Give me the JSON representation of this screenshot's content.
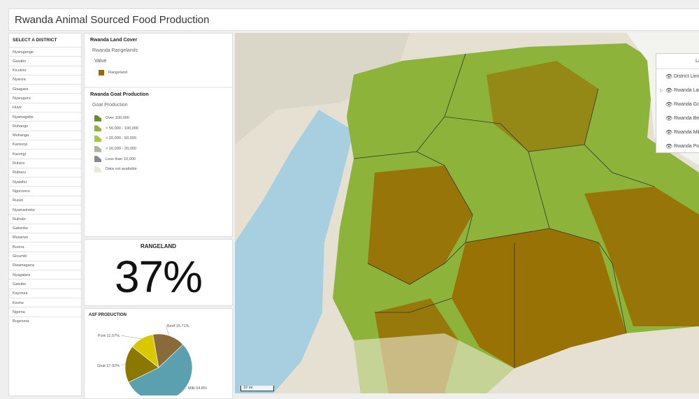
{
  "app": {
    "title": "Rwanda Animal Sourced Food Production"
  },
  "districts": {
    "heading": "SELECT A DISTRICT",
    "items": [
      "Nyarugenge",
      "Gasabo",
      "Kicukiro",
      "Nyanza",
      "Gisagara",
      "Nyaruguru",
      "Huye",
      "Nyamagabe",
      "Ruhango",
      "Muhanga",
      "Kamonyi",
      "Karongi",
      "Rutsiro",
      "Rubavu",
      "Nyabihu",
      "Ngororero",
      "Rusizi",
      "Nyamasheke",
      "Rulindo",
      "Gakenke",
      "Musanze",
      "Burera",
      "Gicumbi",
      "Rwamagana",
      "Nyagatare",
      "Gatsibo",
      "Kayonza",
      "Kirehe",
      "Ngoma",
      "Bugesera"
    ]
  },
  "legend": {
    "land_cover": {
      "title": "Rwanda Land Cover",
      "layer": "Rwanda Rangelands",
      "field": "Value",
      "items": [
        {
          "label": "Rangeland",
          "color": "#9a6a00"
        }
      ]
    },
    "goat": {
      "title": "Rwanda Goat Production",
      "field": "Goat Production",
      "items": [
        {
          "label": "Over 100,000",
          "color": "#6b8a2e"
        },
        {
          "label": "> 50,000 - 100,000",
          "color": "#8db33a"
        },
        {
          "label": "> 20,000 - 50,000",
          "color": "#a3c93f"
        },
        {
          "label": "> 10,000 - 20,000",
          "color": "#a9b89a"
        },
        {
          "label": "Less than 10,000",
          "color": "#8a8a8a"
        },
        {
          "label": "Data not available",
          "color": "#ece8d6"
        }
      ]
    }
  },
  "rangeland": {
    "label": "RANGELAND",
    "value": "37%"
  },
  "asf": {
    "title": "ASF PRODUCTION"
  },
  "chart_data": {
    "type": "pie",
    "title": "ASF PRODUCTION",
    "slices": [
      {
        "label": "Beef",
        "value": 15.71,
        "display": "Beef 15.71%",
        "color": "#8b6a3a"
      },
      {
        "label": "Milk",
        "value": 54.8,
        "display": "Milk 54.8%",
        "color": "#5aa0ae"
      },
      {
        "label": "Goat",
        "value": 17.92,
        "display": "Goat 17.92%",
        "color": "#8a7800"
      },
      {
        "label": "Pork",
        "value": 11.57,
        "display": "Pork 11.57%",
        "color": "#d9c800"
      }
    ]
  },
  "map": {
    "scale": "10 mi",
    "colors": {
      "lake": "#a8cfe0",
      "rangeland": "#9a6a00",
      "green": "#8db33a"
    }
  },
  "layers": {
    "header": "La",
    "items": [
      {
        "label": "District Limit",
        "expandable": false
      },
      {
        "label": "Rwanda Lan",
        "expandable": true
      },
      {
        "label": "Rwanda Goa",
        "expandable": false
      },
      {
        "label": "Rwanda Bee",
        "expandable": false
      },
      {
        "label": "Rwanda Milk",
        "expandable": false
      },
      {
        "label": "Rwanda Pork",
        "expandable": false
      }
    ]
  }
}
